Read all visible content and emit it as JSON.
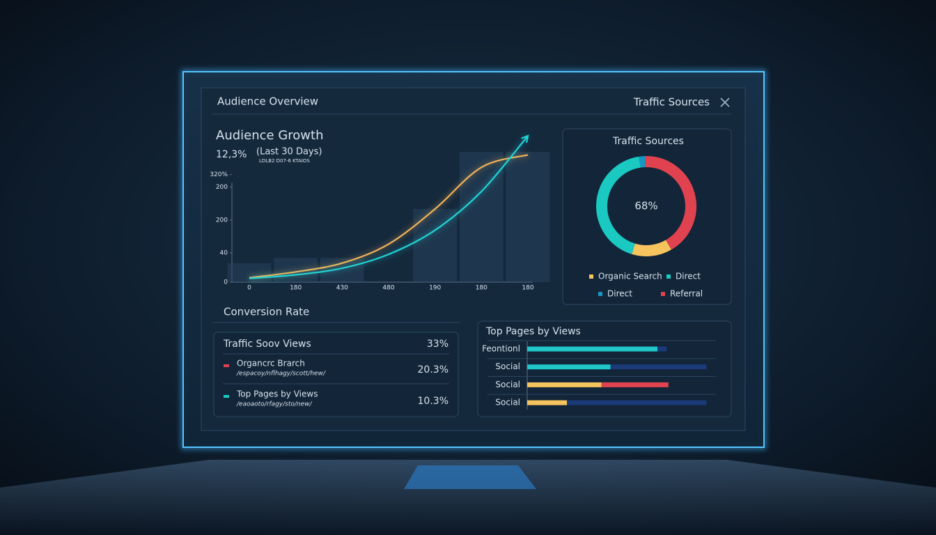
{
  "header": {
    "title": "Audience Overview",
    "panel_title": "Traffic Sources"
  },
  "chart_data": [
    {
      "type": "line",
      "title": "Audience Growth",
      "subtitle": "12,3%",
      "period": "(Last 30 Days)",
      "note": "LDLB2 D07-6 KTAIOS",
      "categories": [
        "0",
        "180",
        "430",
        "480",
        "190",
        "180",
        "180"
      ],
      "ylim": [
        0,
        200
      ],
      "yticks": [
        0,
        40,
        {
          "value": 85,
          "label": "200"
        },
        {
          "value": 130,
          "label": "200"
        },
        {
          "value": 147,
          "label": "320%"
        }
      ],
      "series": [
        {
          "color": "#f2b45a",
          "values": [
            6,
            14,
            26,
            52,
            100,
            157,
            174
          ]
        },
        {
          "color": "#22d3d6",
          "values": [
            5,
            10,
            19,
            38,
            71,
            124,
            200
          ]
        }
      ],
      "bar_values": [
        26,
        33,
        33,
        null,
        100,
        178,
        178
      ],
      "bar_color": "#2d4a63"
    },
    {
      "type": "pie",
      "title": "Traffic Sources",
      "center_label": "68%",
      "series": [
        {
          "name": "Organic Search",
          "color": "#f5c45e",
          "values": [
            13
          ]
        },
        {
          "name": "Direct",
          "color": "#19c9c2",
          "values": [
            43
          ]
        },
        {
          "name": "Direct",
          "color": "#1596c4",
          "values": [
            2
          ]
        },
        {
          "name": "Referral",
          "color": "#e0434f",
          "values": [
            42
          ]
        }
      ]
    },
    {
      "type": "bar",
      "title": "Top Pages by Views",
      "categories": [
        "Feontionl",
        "Social",
        "Social",
        "Social"
      ],
      "xlim": [
        0,
        100
      ],
      "series": [
        {
          "colors": [
            "#1fc7c9",
            "#1fc7c9",
            "#f5c45e",
            "#f5c45e"
          ],
          "values": [
            72,
            46,
            41,
            22
          ]
        },
        {
          "colors": [
            "#1a3a7a",
            "#1a3a7a",
            "#e0434f",
            "#1a3a7a"
          ],
          "values": [
            5,
            53,
            37,
            77
          ]
        }
      ]
    }
  ],
  "conversion": {
    "title": "Conversion Rate",
    "rows": [
      {
        "label": "Traffic Soov Views",
        "value": "33%"
      },
      {
        "label": "Organcrc Brarch",
        "path": "/espacoy/nflhagy/scott/hew/",
        "value": "20.3%",
        "color": "#e0434f"
      },
      {
        "label": "Top Pages by Views",
        "path": "/eaoaoto/rfagy/sto/new/",
        "value": "10.3%",
        "color": "#19c9c2"
      }
    ]
  }
}
